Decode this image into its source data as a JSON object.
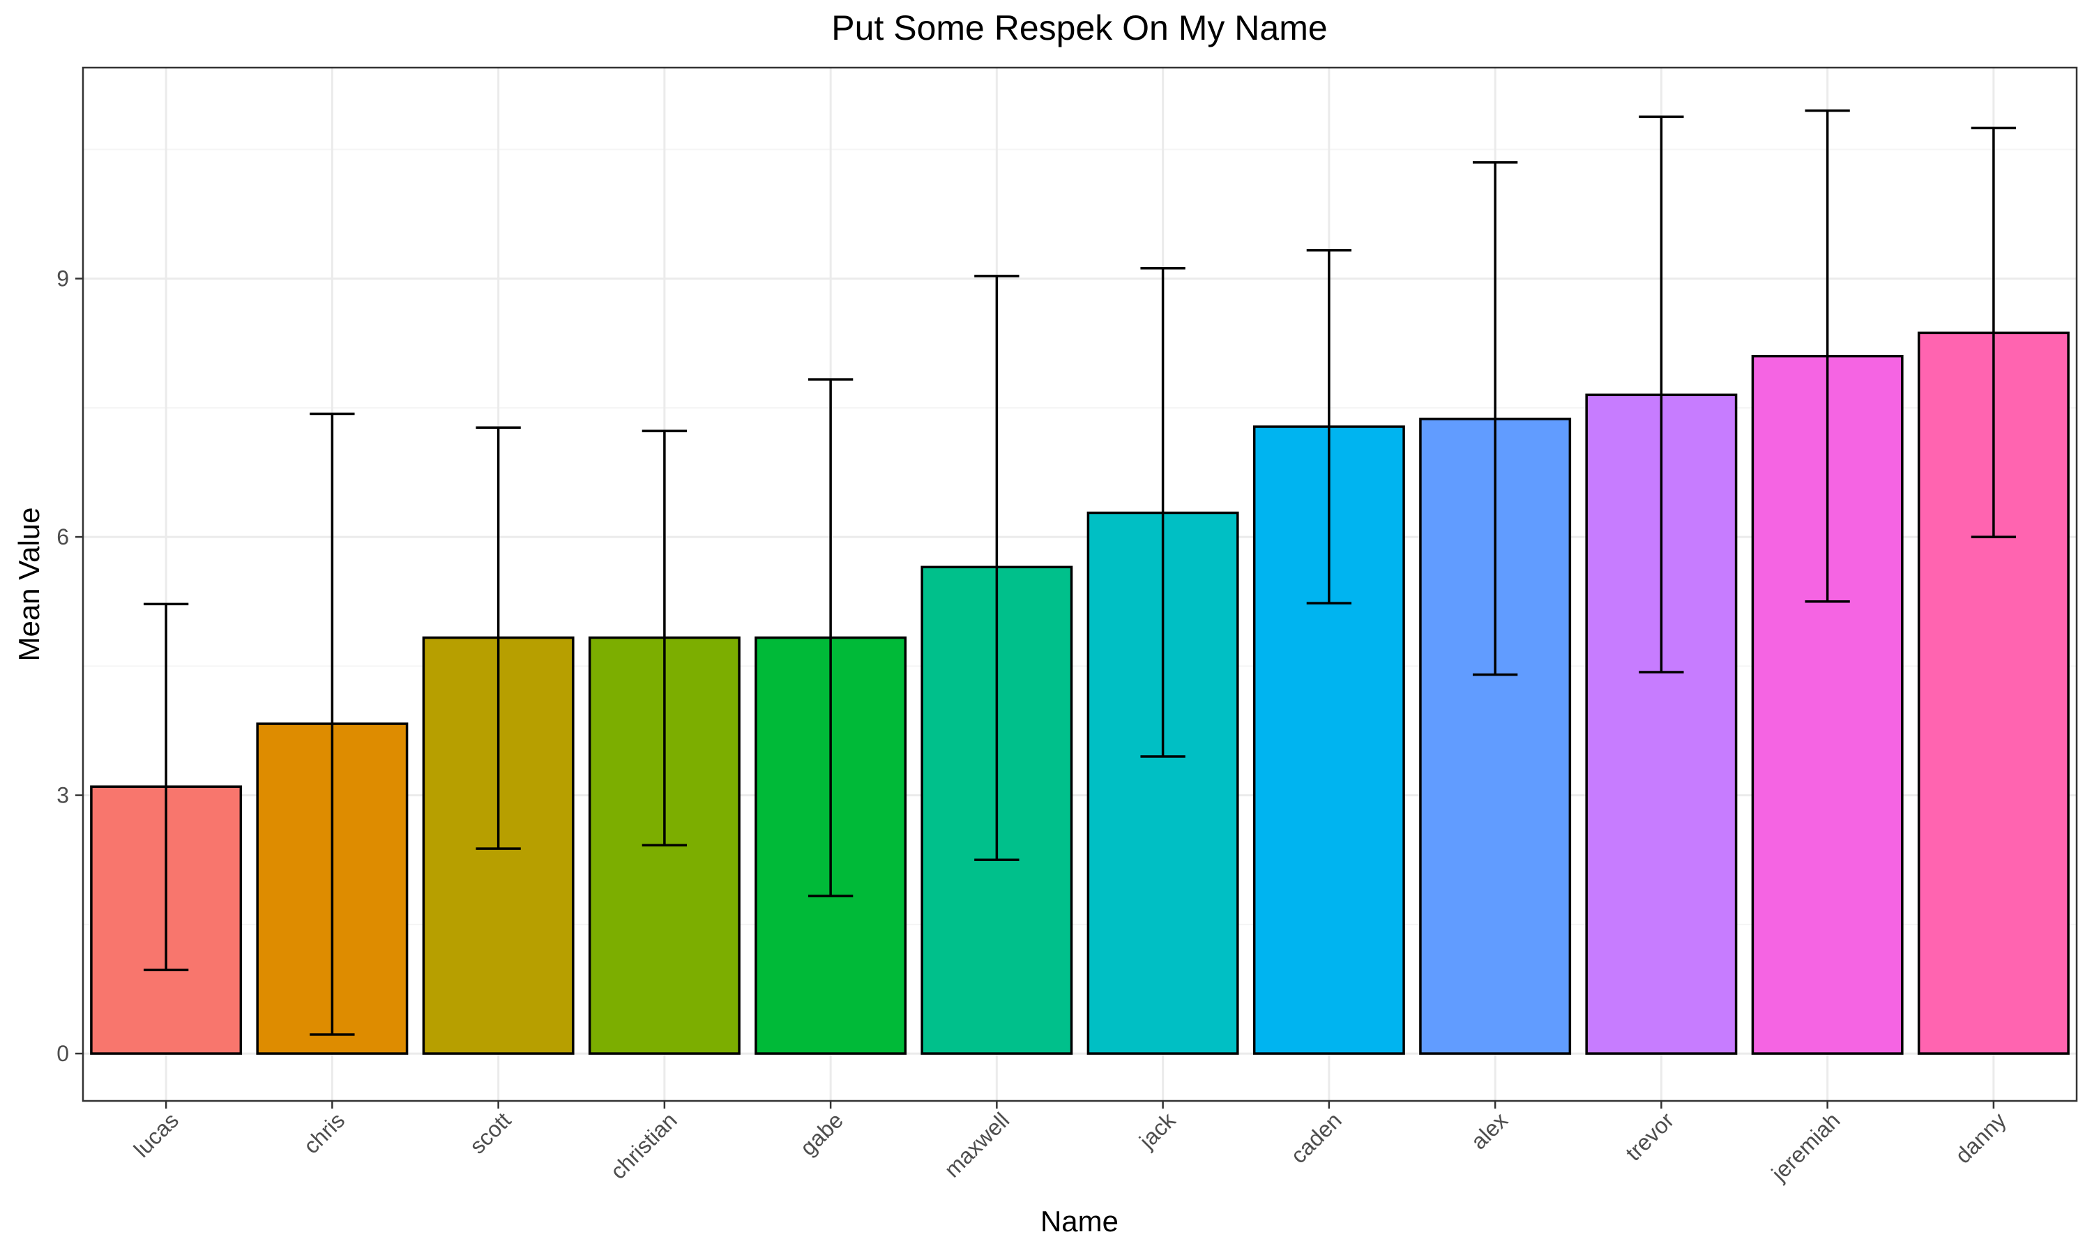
{
  "chart_data": {
    "type": "bar",
    "title": "Put Some Respek On My Name",
    "xlabel": "Name",
    "ylabel": "Mean Value",
    "categories": [
      "lucas",
      "chris",
      "scott",
      "christian",
      "gabe",
      "maxwell",
      "jack",
      "caden",
      "alex",
      "trevor",
      "jeremiah",
      "danny"
    ],
    "values": [
      3.1,
      3.83,
      4.83,
      4.83,
      4.83,
      5.65,
      6.28,
      7.28,
      7.37,
      7.65,
      8.1,
      8.37
    ],
    "error_low": [
      0.97,
      0.22,
      2.38,
      2.42,
      1.83,
      2.25,
      3.45,
      5.23,
      4.4,
      4.43,
      5.25,
      6.0
    ],
    "error_high": [
      5.22,
      7.43,
      7.27,
      7.23,
      7.83,
      9.03,
      9.12,
      9.33,
      10.35,
      10.88,
      10.95,
      10.75
    ],
    "colors": [
      "#F8766D",
      "#DE8C00",
      "#B79F00",
      "#7CAE00",
      "#00BA38",
      "#00C08B",
      "#00BFC4",
      "#00B4F0",
      "#619CFF",
      "#C77CFF",
      "#F564E3",
      "#FF64B0"
    ],
    "ylim": [
      -0.55,
      11.45
    ],
    "yticks": [
      0,
      3,
      6,
      9
    ],
    "ytick_labels": [
      "0",
      "3",
      "6",
      "9"
    ],
    "grid": true,
    "legend": "none",
    "theme": {
      "panel_border": "#333333",
      "grid_major": "#ebebeb",
      "grid_minor": "#f5f5f5",
      "bar_outline": "#000000",
      "error_bar": "#000000"
    }
  }
}
